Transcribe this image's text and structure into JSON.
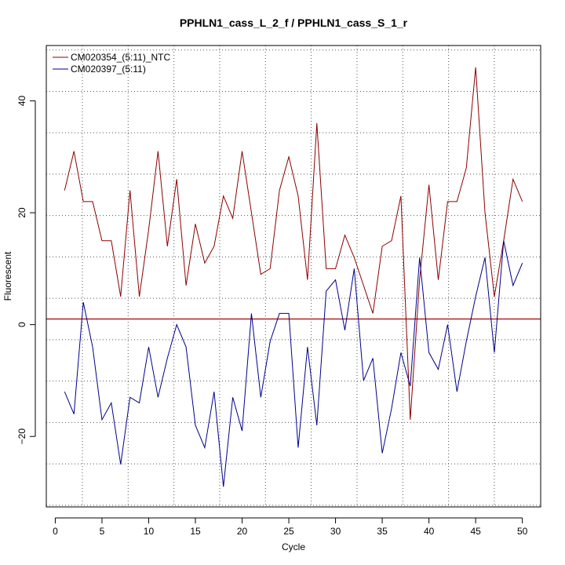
{
  "chart_data": {
    "type": "line",
    "title": "PPHLN1_cass_L_2_f / PPHLN1_cass_S_1_r",
    "xlabel": "Cycle",
    "ylabel": "Fluorescent",
    "xlim": [
      -0.96,
      51.96
    ],
    "ylim": [
      -32.6,
      49.9
    ],
    "x_ticks": [
      0,
      5,
      10,
      15,
      20,
      25,
      30,
      35,
      40,
      45,
      50
    ],
    "y_ticks": [
      -20,
      0,
      20,
      40
    ],
    "y_tick_labels": [
      "−20",
      "0",
      "20",
      "40"
    ],
    "vertical_grid": [
      2.9,
      7.8,
      12.7,
      17.6,
      22.5,
      27.4,
      32.3,
      37.2,
      42.1,
      47.0
    ],
    "horizontal_grid": [
      -32.3,
      -24.9,
      -17.5,
      -10.1,
      -2.7,
      4.7,
      12.1,
      19.5,
      26.9,
      34.3,
      41.7,
      49.1
    ],
    "threshold": 1.0,
    "threshold_color": "#b22222",
    "legend_position": "top-left",
    "x": [
      1,
      2,
      3,
      4,
      5,
      6,
      7,
      8,
      9,
      10,
      11,
      12,
      13,
      14,
      15,
      16,
      17,
      18,
      19,
      20,
      21,
      22,
      23,
      24,
      25,
      26,
      27,
      28,
      29,
      30,
      31,
      32,
      33,
      34,
      35,
      36,
      37,
      38,
      39,
      40,
      41,
      42,
      43,
      44,
      45,
      46,
      47,
      48,
      49,
      50
    ],
    "series": [
      {
        "name": "CM020354_(5:11)_NTC",
        "color": "#8b0000",
        "values": [
          24,
          31,
          22,
          22,
          15,
          15,
          5,
          24,
          5,
          17,
          31,
          14,
          26,
          7,
          18,
          11,
          14,
          23,
          19,
          31,
          20,
          9,
          10,
          24,
          30,
          23,
          8,
          36,
          10,
          10,
          16,
          12,
          7,
          2,
          14,
          15,
          23,
          -17,
          8,
          25,
          8,
          22,
          22,
          28,
          46,
          20,
          5,
          15,
          26,
          22
        ]
      },
      {
        "name": "CM020397_(5:11)",
        "color": "#00008b",
        "values": [
          -12,
          -16,
          4,
          -4,
          -17,
          -14,
          -25,
          -13,
          -14,
          -4,
          -13,
          -6,
          0,
          -4,
          -18,
          -22,
          -12,
          -29,
          -13,
          -19,
          2,
          -13,
          -3,
          2,
          2,
          -22,
          -4,
          -18,
          6,
          8,
          -1,
          10,
          -10,
          -6,
          -23,
          -15,
          -5,
          -11,
          12,
          -5,
          -8,
          0,
          -12,
          -3,
          5,
          12,
          -5,
          15,
          7,
          11
        ]
      }
    ]
  }
}
